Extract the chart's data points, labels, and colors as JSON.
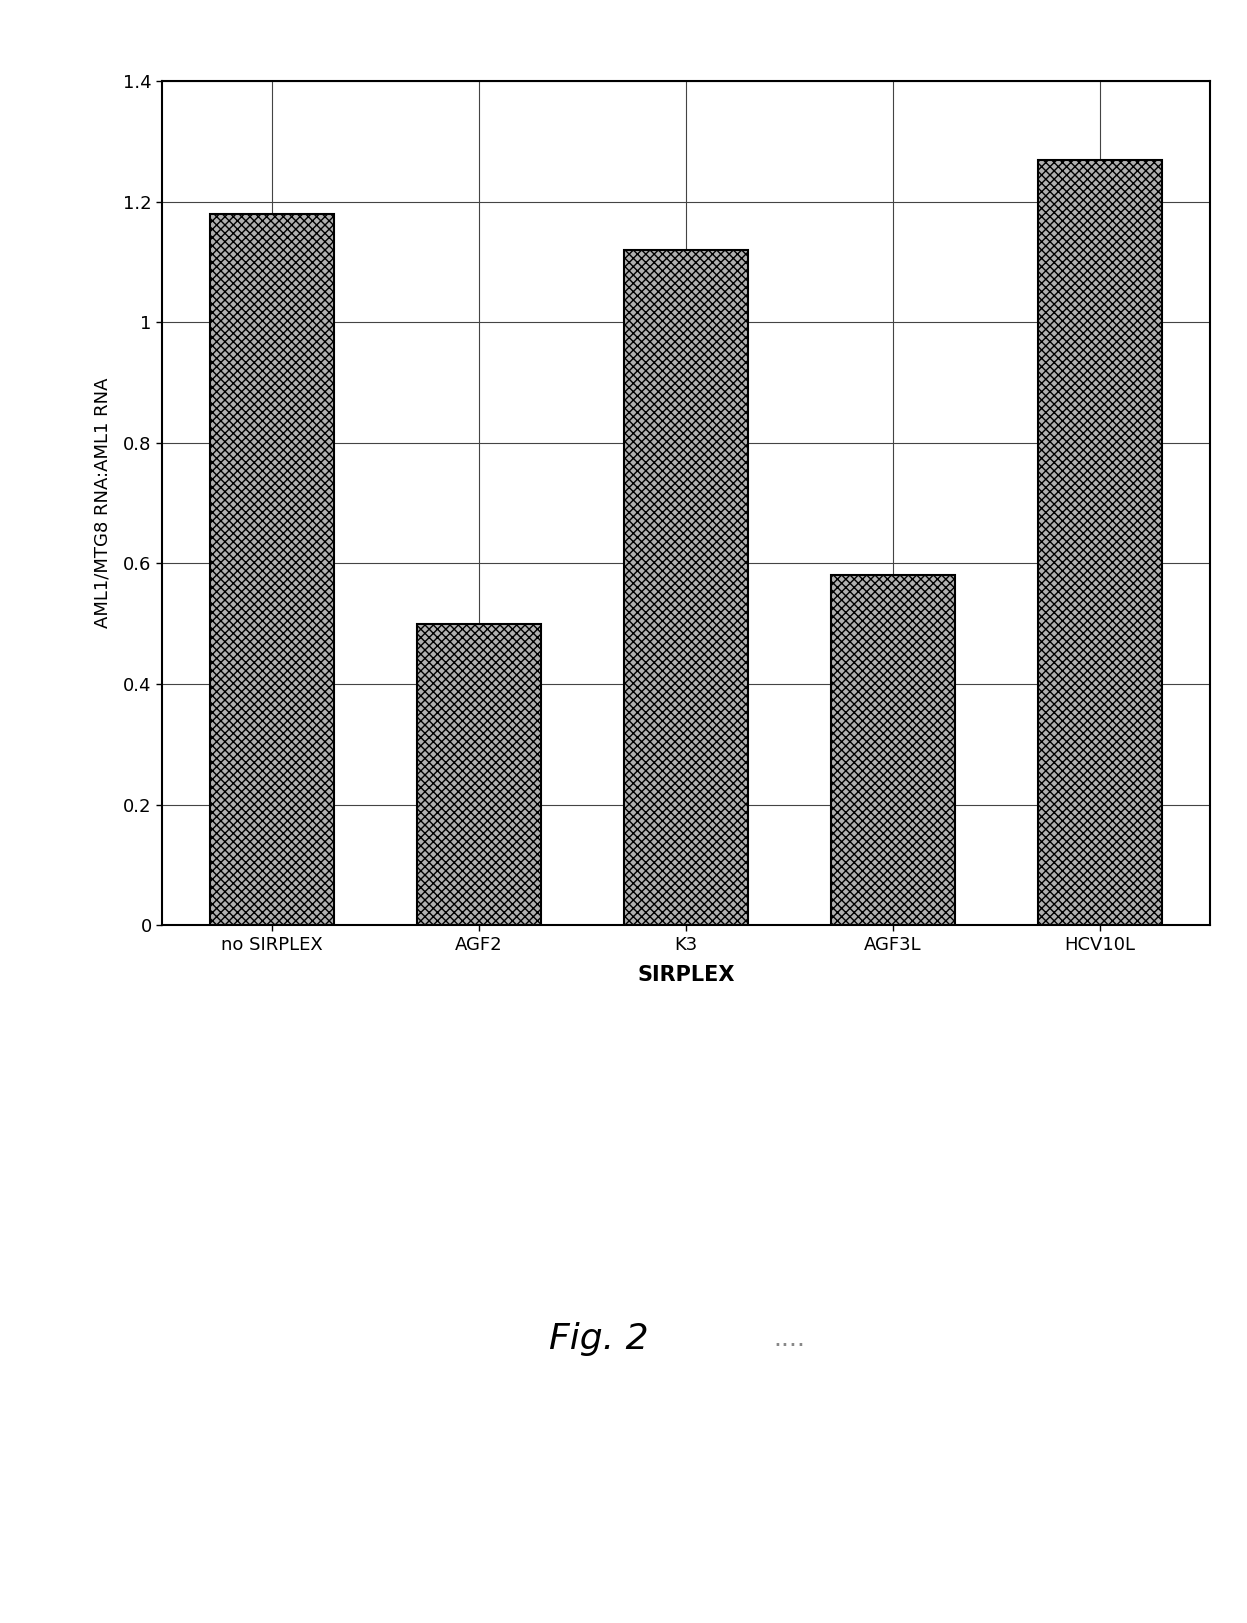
{
  "categories": [
    "no SIRPLEX",
    "AGF2",
    "K3",
    "AGF3L",
    "HCV10L"
  ],
  "values": [
    1.18,
    0.5,
    1.12,
    0.58,
    1.27
  ],
  "bar_color": "#b0b0b0",
  "bar_hatch": "xxxx",
  "ylabel": "AML1/MTG8 RNA:AML1 RNA",
  "xlabel": "SIRPLEX",
  "ylim": [
    0,
    1.4
  ],
  "yticks": [
    0,
    0.2,
    0.4,
    0.6,
    0.8,
    1.0,
    1.2,
    1.4
  ],
  "ytick_labels": [
    "0",
    "0.2",
    "0.4",
    "0.6",
    "0.8",
    "1",
    "1.2",
    "1.4"
  ],
  "figure_caption": "Fig. 2",
  "caption_suffix": "....",
  "background_color": "#ffffff",
  "bar_edge_color": "#000000",
  "xlabel_fontsize": 15,
  "ylabel_fontsize": 13,
  "tick_fontsize": 13,
  "caption_fontsize": 26,
  "caption_suffix_fontsize": 18
}
